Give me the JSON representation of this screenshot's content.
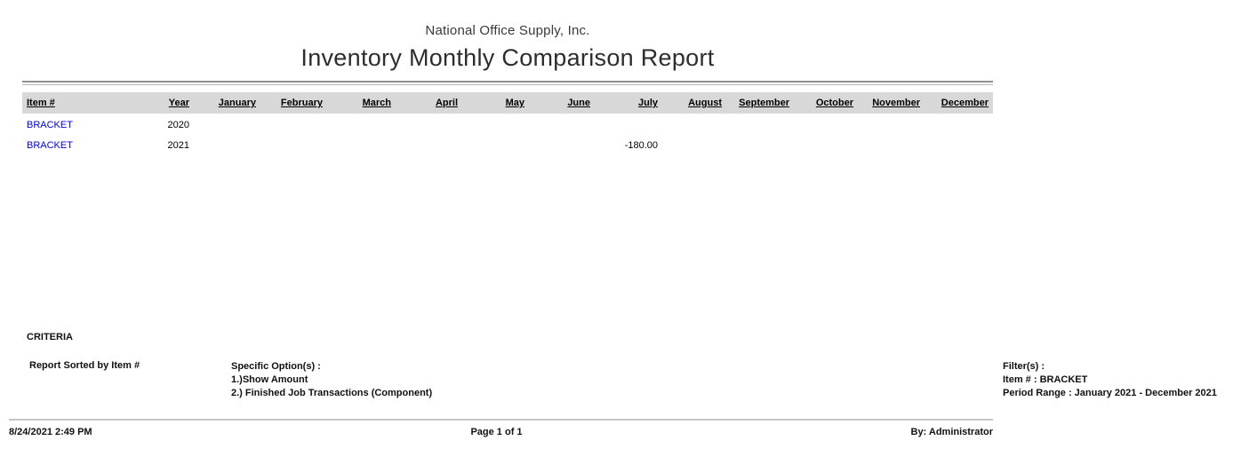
{
  "header": {
    "company": "National Office Supply, Inc.",
    "title": "Inventory Monthly Comparison Report"
  },
  "table": {
    "item_column": "Item #",
    "year_column": "Year",
    "month_columns": [
      "January",
      "February",
      "March",
      "April",
      "May",
      "June",
      "July",
      "August",
      "September",
      "October",
      "November",
      "December"
    ],
    "rows": [
      {
        "item": "BRACKET",
        "year": "2020",
        "monthly_amounts": [
          "",
          "",
          "",
          "",
          "",
          "",
          "",
          "",
          "",
          "",
          "",
          ""
        ]
      },
      {
        "item": "BRACKET",
        "year": "2021",
        "monthly_amounts": [
          "",
          "",
          "",
          "",
          "",
          "",
          "-180.00",
          "",
          "",
          "",
          "",
          ""
        ]
      }
    ]
  },
  "criteria": {
    "heading": "CRITERIA",
    "sorted_by": "Report Sorted by Item #",
    "options_heading": "Specific Option(s) :",
    "options": [
      "1.)Show Amount",
      "2.) Finished Job Transactions (Component)"
    ],
    "filters_heading": "Filter(s) :",
    "filters": [
      "Item # : BRACKET",
      "Period Range : January 2021 - December 2021"
    ]
  },
  "footer": {
    "datetime": "8/24/2021 2:49 PM",
    "page": "Page 1 of 1",
    "by": "By: Administrator"
  },
  "colors": {
    "item_link": "#0000EE",
    "header_band": "#D8D8D8"
  }
}
